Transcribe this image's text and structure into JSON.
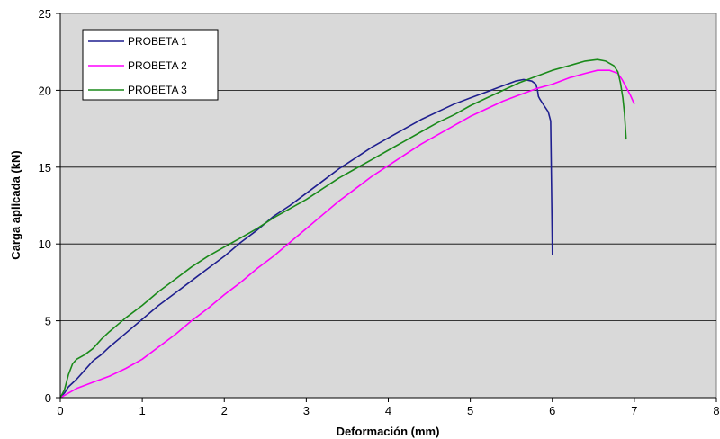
{
  "chart_data": {
    "type": "line",
    "title": "",
    "xlabel": "Deformación (mm)",
    "ylabel": "Carga aplicada (kN)",
    "xlim": [
      0,
      8
    ],
    "ylim": [
      0,
      25
    ],
    "xticks": [
      "0",
      "1",
      "2",
      "3",
      "4",
      "5",
      "6",
      "7",
      "8"
    ],
    "yticks": [
      "0",
      "5",
      "10",
      "15",
      "20",
      "25"
    ],
    "grid": "horizontal",
    "legend": "top-left",
    "background": "#d9d9d9",
    "series": [
      {
        "name": "PROBETA 1",
        "color": "#1f1f8f",
        "x": [
          0.0,
          0.05,
          0.1,
          0.2,
          0.3,
          0.4,
          0.5,
          0.6,
          0.8,
          1.0,
          1.2,
          1.4,
          1.6,
          1.8,
          2.0,
          2.2,
          2.4,
          2.6,
          2.8,
          3.0,
          3.2,
          3.4,
          3.6,
          3.8,
          4.0,
          4.2,
          4.4,
          4.6,
          4.8,
          5.0,
          5.2,
          5.4,
          5.55,
          5.65,
          5.75,
          5.8,
          5.82,
          5.83,
          5.85,
          5.9,
          5.95,
          5.98,
          5.99,
          6.0
        ],
        "y": [
          0.0,
          0.3,
          0.7,
          1.2,
          1.8,
          2.4,
          2.8,
          3.3,
          4.2,
          5.1,
          6.0,
          6.8,
          7.6,
          8.4,
          9.2,
          10.1,
          10.9,
          11.8,
          12.5,
          13.3,
          14.1,
          14.9,
          15.6,
          16.3,
          16.9,
          17.5,
          18.1,
          18.6,
          19.1,
          19.5,
          19.9,
          20.3,
          20.6,
          20.7,
          20.6,
          20.4,
          20.0,
          19.6,
          19.4,
          19.0,
          18.6,
          18.0,
          14.0,
          9.3
        ]
      },
      {
        "name": "PROBETA 2",
        "color": "#ff00ff",
        "x": [
          0.0,
          0.1,
          0.2,
          0.4,
          0.6,
          0.8,
          1.0,
          1.2,
          1.4,
          1.6,
          1.8,
          2.0,
          2.2,
          2.4,
          2.6,
          2.8,
          3.0,
          3.2,
          3.4,
          3.6,
          3.8,
          4.0,
          4.2,
          4.4,
          4.6,
          4.8,
          5.0,
          5.2,
          5.4,
          5.6,
          5.8,
          6.0,
          6.2,
          6.4,
          6.55,
          6.7,
          6.8,
          6.85,
          6.9,
          6.95,
          7.0
        ],
        "y": [
          0.0,
          0.3,
          0.6,
          1.0,
          1.4,
          1.9,
          2.5,
          3.3,
          4.1,
          5.0,
          5.8,
          6.7,
          7.5,
          8.4,
          9.2,
          10.1,
          11.0,
          11.9,
          12.8,
          13.6,
          14.4,
          15.1,
          15.8,
          16.5,
          17.1,
          17.7,
          18.3,
          18.8,
          19.3,
          19.7,
          20.1,
          20.4,
          20.8,
          21.1,
          21.3,
          21.3,
          21.1,
          20.7,
          20.2,
          19.7,
          19.1
        ]
      },
      {
        "name": "PROBETA 3",
        "color": "#1a8a1a",
        "x": [
          0.0,
          0.05,
          0.1,
          0.15,
          0.2,
          0.3,
          0.4,
          0.5,
          0.6,
          0.8,
          1.0,
          1.2,
          1.4,
          1.6,
          1.8,
          2.0,
          2.2,
          2.4,
          2.6,
          2.8,
          3.0,
          3.2,
          3.4,
          3.6,
          3.8,
          4.0,
          4.2,
          4.4,
          4.6,
          4.8,
          5.0,
          5.2,
          5.4,
          5.6,
          5.8,
          6.0,
          6.2,
          6.4,
          6.55,
          6.65,
          6.75,
          6.8,
          6.83,
          6.86,
          6.88,
          6.9
        ],
        "y": [
          0.0,
          0.5,
          1.5,
          2.2,
          2.5,
          2.8,
          3.2,
          3.8,
          4.3,
          5.2,
          6.0,
          6.9,
          7.7,
          8.5,
          9.2,
          9.8,
          10.4,
          11.0,
          11.7,
          12.3,
          12.9,
          13.6,
          14.3,
          14.9,
          15.5,
          16.1,
          16.7,
          17.3,
          17.9,
          18.4,
          19.0,
          19.5,
          20.0,
          20.5,
          20.9,
          21.3,
          21.6,
          21.9,
          22.0,
          21.9,
          21.6,
          21.2,
          20.5,
          19.5,
          18.5,
          16.8
        ]
      }
    ]
  }
}
